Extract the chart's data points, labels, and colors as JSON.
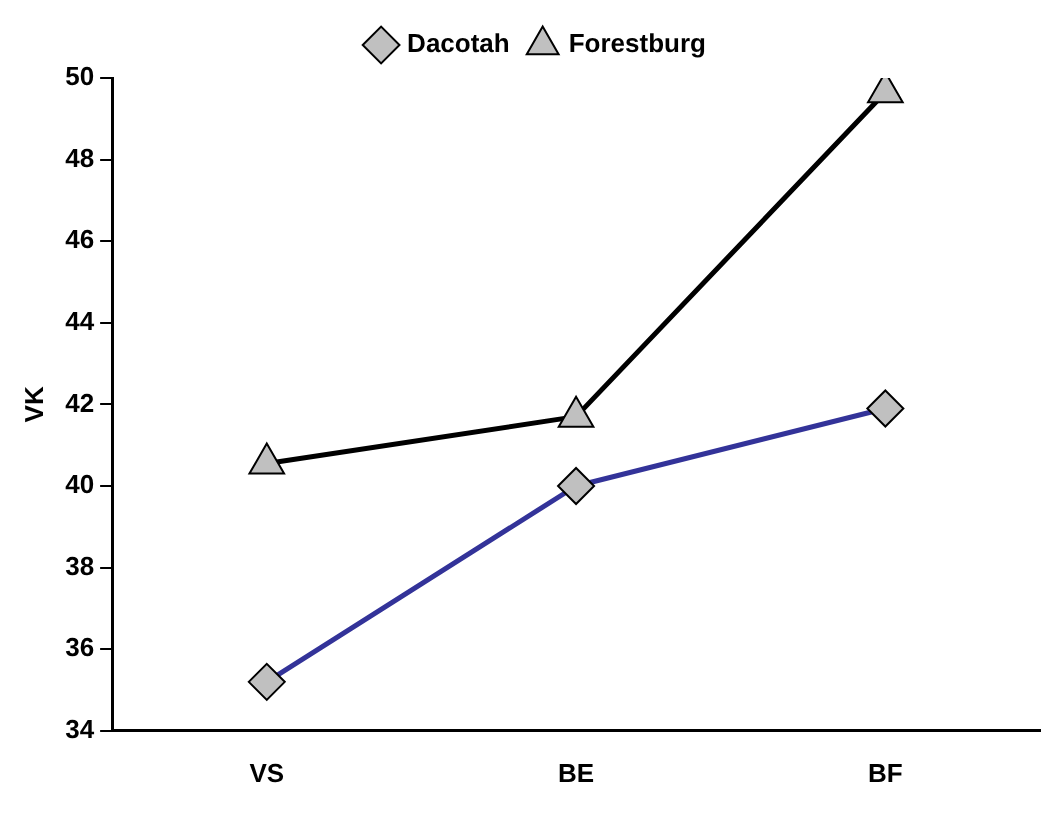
{
  "chart_data": {
    "type": "line",
    "ylabel": "VK",
    "categories": [
      "VS",
      "BE",
      "BF"
    ],
    "series": [
      {
        "name": "Dacotah",
        "color": "#333399",
        "marker": "diamond",
        "values": [
          35.2,
          40.0,
          41.9
        ]
      },
      {
        "name": "Forestburg",
        "color": "#000000",
        "marker": "triangle",
        "values": [
          40.55,
          41.7,
          49.65
        ]
      }
    ],
    "ylim": [
      34,
      50
    ],
    "yticks": [
      34,
      36,
      38,
      40,
      42,
      44,
      46,
      48,
      50
    ],
    "grid": false,
    "legend": "top",
    "line_style": "solid"
  }
}
